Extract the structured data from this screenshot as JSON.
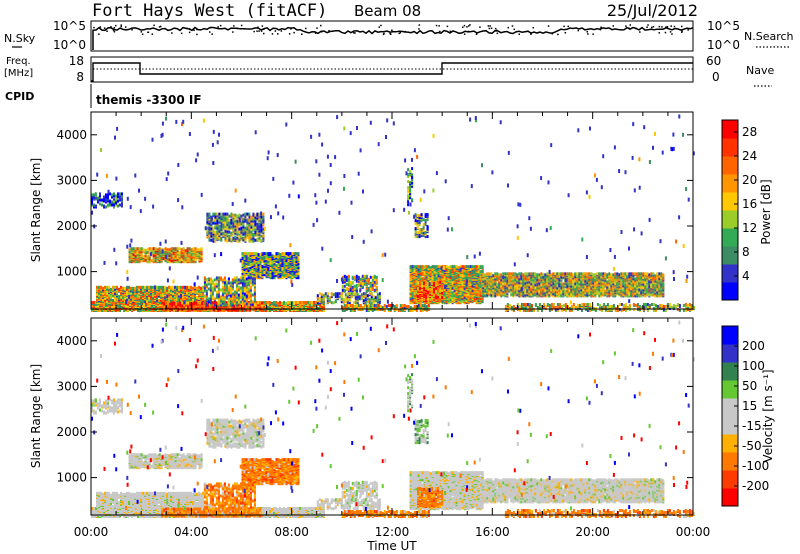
{
  "header": {
    "station": "Fort Hays West (fitACF)",
    "beam": "Beam 08",
    "date": "25/Jul/2012"
  },
  "top_panels": {
    "nsky_label": "N.Sky",
    "nsky_ticks": [
      "10^5",
      "10^0"
    ],
    "nsearch_label": "N.Search",
    "nsearch_ticks": [
      "10^5",
      "10^0"
    ],
    "freq_label_1": "Freq.",
    "freq_label_2": "[MHz]",
    "freq_ticks": [
      "18",
      "8"
    ],
    "nave_label": "Nave",
    "nave_ticks": [
      "60",
      "0"
    ],
    "cpid_label": "CPID",
    "cpid_value": "themis -3300 IF"
  },
  "colors": {
    "power_scale": [
      "#0000ff",
      "#3232c8",
      "#3c8c64",
      "#33aa55",
      "#9bcd28",
      "#ffc800",
      "#ff9600",
      "#ff6400",
      "#ff3200",
      "#ff0000"
    ],
    "velocity_scale": [
      "#ff0000",
      "#ff3c00",
      "#ff7800",
      "#ffb000",
      "#c8c8c8",
      "#c8c8c8",
      "#64c832",
      "#328250",
      "#3232c8",
      "#0000ff"
    ]
  },
  "chart_data": [
    {
      "type": "heatmap",
      "panel": "power",
      "ylabel": "Slant Range [km]",
      "xlabel": "Time UT",
      "xlim": [
        "00:00",
        "00:00"
      ],
      "x_ticks": [
        "00:00",
        "04:00",
        "08:00",
        "12:00",
        "16:00",
        "20:00",
        "00:00"
      ],
      "ylim": [
        180,
        4500
      ],
      "y_ticks": [
        "1000",
        "2000",
        "3000",
        "4000"
      ],
      "colorbar_label": "Power [dB]",
      "colorbar_ticks": [
        "4",
        "8",
        "12",
        "16",
        "20",
        "24",
        "28"
      ],
      "colorbar_range": [
        0,
        30
      ]
    },
    {
      "type": "heatmap",
      "panel": "velocity",
      "ylabel": "Slant Range [km]",
      "xlabel": "Time UT",
      "xlim": [
        "00:00",
        "00:00"
      ],
      "x_ticks": [
        "00:00",
        "04:00",
        "08:00",
        "12:00",
        "16:00",
        "20:00",
        "00:00"
      ],
      "ylim": [
        180,
        4500
      ],
      "y_ticks": [
        "1000",
        "2000",
        "3000",
        "4000"
      ],
      "colorbar_label": "Velocity [m s⁻¹]",
      "colorbar_ticks": [
        "200",
        "100",
        "50",
        "15",
        "-15",
        "-50",
        "-100",
        "-200"
      ],
      "colorbar_range": [
        -250,
        250
      ]
    }
  ]
}
